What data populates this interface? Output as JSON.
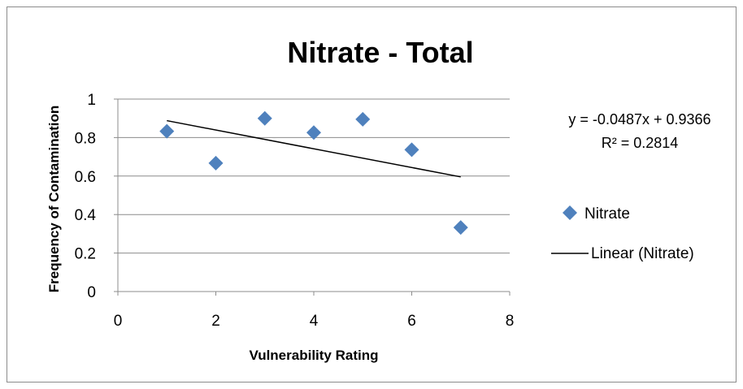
{
  "chart_data": {
    "type": "scatter",
    "title": "Nitrate - Total",
    "xlabel": "Vulnerability Rating",
    "ylabel": "Frequency of Contamination",
    "xlim": [
      0,
      8
    ],
    "ylim": [
      0,
      1
    ],
    "x_ticks": [
      "0",
      "2",
      "4",
      "6",
      "8"
    ],
    "y_ticks": [
      "0",
      "0.2",
      "0.4",
      "0.6",
      "0.8",
      "1"
    ],
    "x_tick_values": [
      0,
      2,
      4,
      6,
      8
    ],
    "y_tick_values": [
      0,
      0.2,
      0.4,
      0.6,
      0.8,
      1
    ],
    "grid": "horizontal",
    "legend_position": "right",
    "series": [
      {
        "name": "Nitrate",
        "marker": "diamond",
        "color": "#4F81BD",
        "x": [
          1,
          2,
          3,
          4,
          5,
          6,
          7
        ],
        "y": [
          0.833,
          0.667,
          0.9,
          0.826,
          0.895,
          0.737,
          0.333
        ]
      }
    ],
    "trendline": {
      "name": "Linear (Nitrate)",
      "slope": -0.0487,
      "intercept": 0.9366,
      "x_range": [
        1,
        7
      ],
      "color": "#000000",
      "equation": "y = -0.0487x + 0.9366",
      "r_squared": "R² = 0.2814"
    }
  }
}
